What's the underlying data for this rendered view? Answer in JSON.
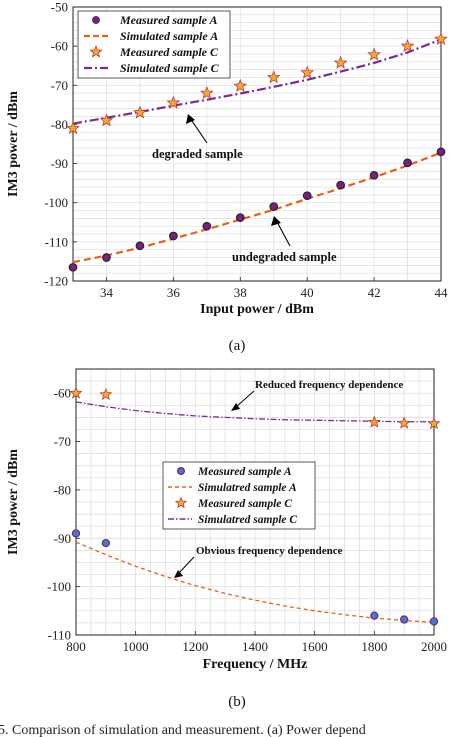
{
  "colors": {
    "measured_a_fill": "#7b1f7e",
    "measured_a_fill_b": "#3a7fc2",
    "simulated_a": "#e3631a",
    "measured_c_fill": "#f4a53a",
    "simulated_c": "#7c2b8f",
    "grid": "#dcdcdc",
    "arrow": "#000000"
  },
  "chart_data": [
    {
      "type": "scatter",
      "panel_label": "(a)",
      "xlabel": "Input power / dBm",
      "ylabel": "IM3 power / dBm",
      "xlim": [
        33,
        44
      ],
      "ylim": [
        -120,
        -50
      ],
      "xticks": [
        34,
        36,
        38,
        40,
        42,
        44
      ],
      "yticks": [
        -120,
        -110,
        -100,
        -90,
        -80,
        -70,
        -60,
        -50
      ],
      "grid": true,
      "legend_position": "top-left",
      "series": [
        {
          "name": "Measured sample A",
          "kind": "marker-circle",
          "x": [
            33,
            34,
            35,
            36,
            37,
            38,
            39,
            40,
            41,
            42,
            43,
            44
          ],
          "y": [
            -116.5,
            -114.0,
            -111.0,
            -108.5,
            -106.0,
            -103.8,
            -101.0,
            -98.2,
            -95.5,
            -93.0,
            -89.8,
            -87.0
          ]
        },
        {
          "name": "Simulated sample A",
          "kind": "line-dashed",
          "x": [
            33,
            34,
            35,
            36,
            37,
            38,
            39,
            40,
            41,
            42,
            43,
            44
          ],
          "y": [
            -115.2,
            -113.5,
            -111.5,
            -109.2,
            -106.8,
            -104.3,
            -101.8,
            -99.0,
            -96.3,
            -93.5,
            -90.5,
            -87.2
          ]
        },
        {
          "name": "Measured sample C",
          "kind": "marker-star",
          "x": [
            33,
            34,
            35,
            36,
            37,
            38,
            39,
            40,
            41,
            42,
            43,
            44
          ],
          "y": [
            -81.0,
            -79.0,
            -77.0,
            -74.5,
            -72.0,
            -70.2,
            -68.0,
            -66.8,
            -64.3,
            -62.2,
            -60.0,
            -58.2
          ]
        },
        {
          "name": "Simulated sample C",
          "kind": "line-dashdot",
          "x": [
            33,
            34,
            35,
            36,
            37,
            38,
            39,
            40,
            41,
            42,
            43,
            44
          ],
          "y": [
            -79.8,
            -78.3,
            -76.8,
            -75.2,
            -73.7,
            -72.1,
            -70.4,
            -68.6,
            -66.5,
            -64.3,
            -61.6,
            -58.3
          ]
        }
      ],
      "annotations": [
        {
          "text": "degraded sample",
          "arrow_to": [
            37.4,
            -74.5
          ]
        },
        {
          "text": "undegraded sample",
          "arrow_to": [
            39.2,
            -102.0
          ]
        }
      ]
    },
    {
      "type": "scatter",
      "panel_label": "(b)",
      "xlabel": "Frequency / MHz",
      "ylabel": "IM3 power / dBm",
      "xlim": [
        800,
        2000
      ],
      "ylim": [
        -110,
        -55
      ],
      "xticks": [
        800,
        1000,
        1200,
        1400,
        1600,
        1800,
        2000
      ],
      "yticks": [
        -110,
        -100,
        -90,
        -80,
        -70,
        -60
      ],
      "grid": true,
      "legend_position": "center",
      "series": [
        {
          "name": "Measured sample A",
          "kind": "marker-circle",
          "x": [
            800,
            900,
            1800,
            1900,
            2000
          ],
          "y": [
            -89.0,
            -91.0,
            -106.0,
            -106.8,
            -107.2
          ]
        },
        {
          "name": "Simulatred sample A",
          "kind": "line-dashed",
          "x": [
            800,
            900,
            1000,
            1100,
            1200,
            1300,
            1400,
            1500,
            1600,
            1700,
            1800,
            1900,
            2000
          ],
          "y": [
            -90.8,
            -93.4,
            -95.8,
            -97.9,
            -99.8,
            -101.4,
            -102.8,
            -104.0,
            -105.0,
            -105.8,
            -106.5,
            -107.0,
            -107.4
          ]
        },
        {
          "name": "Measured sample C",
          "kind": "marker-star",
          "x": [
            800,
            900,
            1800,
            1900,
            2000
          ],
          "y": [
            -60.0,
            -60.3,
            -66.0,
            -66.2,
            -66.3
          ]
        },
        {
          "name": "Simulatred sample C",
          "kind": "line-dashdot",
          "x": [
            800,
            900,
            1000,
            1100,
            1200,
            1300,
            1400,
            1500,
            1600,
            1700,
            1800,
            1900,
            2000
          ],
          "y": [
            -61.8,
            -62.8,
            -63.6,
            -64.2,
            -64.7,
            -65.0,
            -65.3,
            -65.5,
            -65.6,
            -65.7,
            -65.8,
            -65.9,
            -65.9
          ]
        }
      ],
      "annotations": [
        {
          "text": "Reduced frequency dependence",
          "arrow_to": [
            1310,
            -64.9
          ]
        },
        {
          "text": "Obvious frequency dependence",
          "arrow_to": [
            1120,
            -98.8
          ]
        }
      ]
    }
  ],
  "caption": "5.  Comparison of simulation and measurement. (a) Power depend"
}
